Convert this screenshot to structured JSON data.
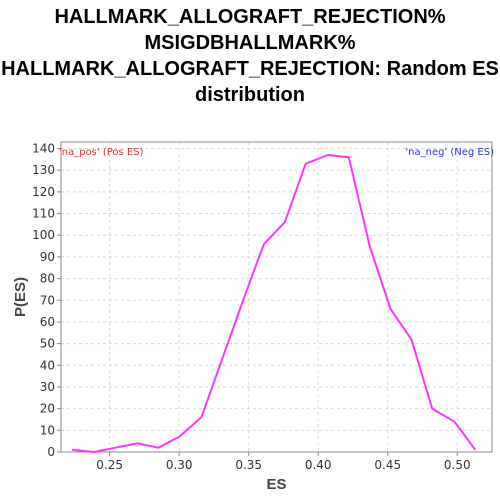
{
  "chart_data": {
    "type": "line",
    "title_lines": [
      "HALLMARK_ALLOGRAFT_REJECTION%",
      "MSIGDBHALLMARK%",
      "HALLMARK_ALLOGRAFT_REJECTION: Random ES",
      "distribution"
    ],
    "xlabel": "ES",
    "ylabel": "P(ES)",
    "xlim": [
      0.215,
      0.525
    ],
    "ylim": [
      0,
      143
    ],
    "xticks": [
      0.25,
      0.3,
      0.35,
      0.4,
      0.45,
      0.5
    ],
    "xtick_labels": [
      "0.25",
      "0.30",
      "0.35",
      "0.40",
      "0.45",
      "0.50"
    ],
    "yticks": [
      0,
      10,
      20,
      30,
      40,
      50,
      60,
      70,
      80,
      90,
      100,
      110,
      120,
      130,
      140
    ],
    "ytick_labels": [
      "0",
      "10",
      "20",
      "30",
      "40",
      "50",
      "60",
      "70",
      "80",
      "90",
      "100",
      "110",
      "120",
      "130",
      "140"
    ],
    "grid": true,
    "legend": [
      {
        "label": "'na_pos' (Pos ES)",
        "color": "#e03030",
        "placement": "top-left"
      },
      {
        "label": "'na_neg' (Neg ES)",
        "color": "#3030e0",
        "placement": "top-right"
      }
    ],
    "series": [
      {
        "color": "#ff33ff",
        "x": [
          0.223,
          0.239,
          0.254,
          0.27,
          0.285,
          0.3,
          0.316,
          0.331,
          0.346,
          0.361,
          0.376,
          0.391,
          0.407,
          0.422,
          0.437,
          0.452,
          0.467,
          0.482,
          0.498,
          0.513
        ],
        "y": [
          1,
          0,
          2,
          4,
          2,
          7,
          16,
          43,
          70,
          96,
          106,
          133,
          137,
          136,
          95,
          66,
          52,
          20,
          14,
          1
        ]
      }
    ]
  }
}
